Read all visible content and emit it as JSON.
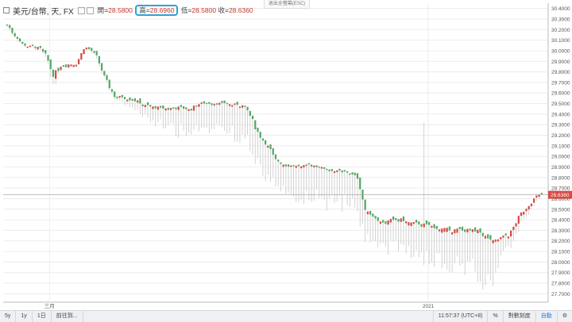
{
  "legend": {
    "title": "美元/台幣, 天, FX",
    "open_label": "開",
    "open_value": "28.5800",
    "high_label": "高",
    "high_value": "28.6960",
    "low_label": "低",
    "low_value": "28.5800",
    "close_label": "收",
    "close_value": "28.6360",
    "fullscreen_hint": "退出全螢幕(ESC)"
  },
  "footer": {
    "left": [
      "5y",
      "1y",
      "1日",
      "前往到..."
    ],
    "time": "11:57:37 (UTC+8)",
    "percent": "%",
    "log": "對數刻度",
    "auto": "自動",
    "gear": "gear-icon"
  },
  "colors": {
    "up": "#d64b43",
    "down": "#54a865",
    "wick": "#c8c8c8",
    "grid": "#ececec"
  },
  "chart_data": {
    "type": "candlestick",
    "symbol": "美元/台幣",
    "interval": "天",
    "ylim": [
      27.62,
      30.45
    ],
    "y_ticks": [
      27.7,
      27.8,
      27.9,
      28.0,
      28.1,
      28.2,
      28.3,
      28.4,
      28.5,
      28.6,
      28.7,
      28.8,
      28.9,
      29.0,
      29.1,
      29.2,
      29.3,
      29.4,
      29.5,
      29.6,
      29.7,
      29.8,
      29.9,
      30.0,
      30.1,
      30.2,
      30.3,
      30.4
    ],
    "x_ticks": [
      {
        "label": "三月",
        "x": 0.085
      },
      {
        "label": "2021",
        "x": 0.78
      }
    ],
    "last_price": 28.636,
    "anchors": [
      [
        0.0,
        30.24,
        0.05,
        0.0
      ],
      [
        0.01,
        30.16,
        0.04,
        0.0
      ],
      [
        0.03,
        30.05,
        0.04,
        0.0
      ],
      [
        0.06,
        30.02,
        0.05,
        0.0
      ],
      [
        0.075,
        29.92,
        0.06,
        0.0
      ],
      [
        0.085,
        29.75,
        0.08,
        0.05
      ],
      [
        0.1,
        29.86,
        0.06,
        0.0
      ],
      [
        0.13,
        29.88,
        0.05,
        0.0
      ],
      [
        0.145,
        30.04,
        0.04,
        0.0
      ],
      [
        0.165,
        29.96,
        0.05,
        0.0
      ],
      [
        0.18,
        29.76,
        0.07,
        0.0
      ],
      [
        0.2,
        29.56,
        0.06,
        0.0
      ],
      [
        0.23,
        29.55,
        0.06,
        0.05
      ],
      [
        0.26,
        29.47,
        0.07,
        0.1
      ],
      [
        0.29,
        29.45,
        0.06,
        0.15
      ],
      [
        0.32,
        29.46,
        0.05,
        0.2
      ],
      [
        0.34,
        29.44,
        0.05,
        0.22
      ],
      [
        0.36,
        29.5,
        0.04,
        0.22
      ],
      [
        0.4,
        29.5,
        0.04,
        0.25
      ],
      [
        0.44,
        29.48,
        0.05,
        0.28
      ],
      [
        0.45,
        29.42,
        0.06,
        0.28
      ],
      [
        0.47,
        29.2,
        0.08,
        0.25
      ],
      [
        0.49,
        29.08,
        0.06,
        0.25
      ],
      [
        0.5,
        28.96,
        0.06,
        0.25
      ],
      [
        0.52,
        28.92,
        0.05,
        0.25
      ],
      [
        0.55,
        28.9,
        0.04,
        0.26
      ],
      [
        0.57,
        28.92,
        0.04,
        0.28
      ],
      [
        0.6,
        28.87,
        0.04,
        0.3
      ],
      [
        0.64,
        28.84,
        0.04,
        0.28
      ],
      [
        0.655,
        28.8,
        0.06,
        0.28
      ],
      [
        0.67,
        28.48,
        0.05,
        0.25
      ],
      [
        0.7,
        28.37,
        0.08,
        0.2
      ],
      [
        0.73,
        28.4,
        0.08,
        0.22
      ],
      [
        0.76,
        28.36,
        0.08,
        0.25
      ],
      [
        0.79,
        28.34,
        0.08,
        0.28
      ],
      [
        0.82,
        28.3,
        0.08,
        0.3
      ],
      [
        0.85,
        28.3,
        0.08,
        0.32
      ],
      [
        0.88,
        28.28,
        0.09,
        0.35
      ],
      [
        0.9,
        28.22,
        0.09,
        0.42
      ],
      [
        0.91,
        28.18,
        0.09,
        0.45
      ],
      [
        0.92,
        28.22,
        0.07,
        0.2
      ],
      [
        0.94,
        28.26,
        0.06,
        0.08
      ],
      [
        0.96,
        28.45,
        0.06,
        0.05
      ],
      [
        0.99,
        28.62,
        0.05,
        0.02
      ],
      [
        1.0,
        28.64,
        0.05,
        0.0
      ]
    ],
    "spike": {
      "x": 0.78,
      "high": 29.32
    }
  }
}
